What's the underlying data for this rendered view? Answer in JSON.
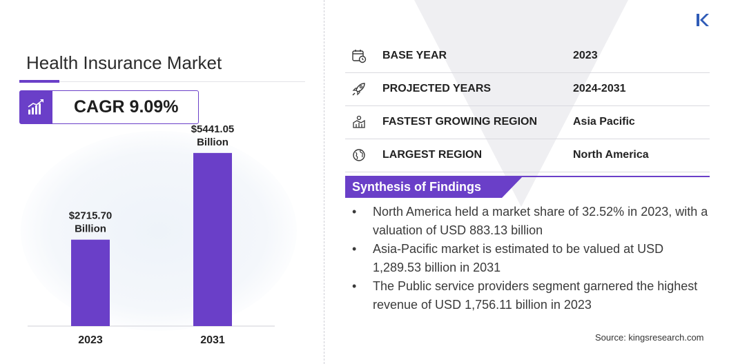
{
  "title": "Health Insurance Market",
  "cagr": "CAGR 9.09%",
  "chart_data": {
    "type": "bar",
    "categories": [
      "2023",
      "2031"
    ],
    "values": [
      2715.7,
      5441.05
    ],
    "data_labels": [
      [
        "$2715.70",
        "Billion"
      ],
      [
        "$5441.05",
        "Billion"
      ]
    ],
    "title": "",
    "xlabel": "",
    "ylabel": "",
    "ylim": [
      0,
      6500
    ],
    "grid": false,
    "bar_color": "#6a3fc8"
  },
  "facts": [
    {
      "icon": "calendar-icon",
      "label": "BASE YEAR",
      "value": "2023"
    },
    {
      "icon": "rocket-icon",
      "label": "PROJECTED YEARS",
      "value": "2024-2031"
    },
    {
      "icon": "growth-region-icon",
      "label": "FASTEST GROWING REGION",
      "value": "Asia Pacific"
    },
    {
      "icon": "globe-icon",
      "label": "LARGEST REGION",
      "value": "North America"
    }
  ],
  "synthesis": {
    "title": "Synthesis of Findings",
    "bullet": "•",
    "items": [
      "North America held a market share of 32.52% in 2023, with a valuation of USD 883.13 billion",
      "Asia-Pacific market is estimated to be valued at USD 1,289.53 billion in 2031",
      "The Public service providers segment garnered the highest revenue of USD 1,756.11 billion in 2023"
    ]
  },
  "source": "Source:  kingsresearch.com",
  "colors": {
    "accent": "#6a3fc8",
    "logo": "#2f5bb7"
  }
}
